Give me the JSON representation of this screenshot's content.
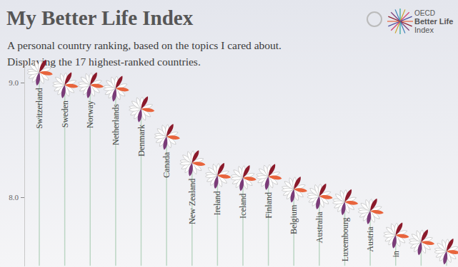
{
  "chart_data": {
    "type": "lollipop",
    "title": "My Better Life Index",
    "subtitle": [
      "A personal country ranking, based on the topics I cared about.",
      "Displaying the 17 highest-ranked countries."
    ],
    "annotations": [
      "OECD",
      "Better Life",
      "Index"
    ],
    "categories": [
      "Switzerland",
      "Sweden",
      "Norway",
      "Netherlands",
      "Denmark",
      "Canada",
      "New Zealand",
      "Ireland",
      "Iceland",
      "Finland",
      "Belgium",
      "Australia",
      "Luxembourg",
      "Austria",
      "in",
      null,
      null
    ],
    "values": [
      9.09,
      8.98,
      8.98,
      8.95,
      8.77,
      8.53,
      8.3,
      8.19,
      8.17,
      8.18,
      8.07,
      8.01,
      7.96,
      7.88,
      7.67,
      7.61,
      7.53
    ],
    "color": "#bcd6c4",
    "ylim": [
      7.4,
      9.2
    ],
    "yticks": [
      {
        "value": 8,
        "label": "8.0"
      },
      {
        "value": 9,
        "label": "9.0"
      }
    ],
    "grid": false
  }
}
